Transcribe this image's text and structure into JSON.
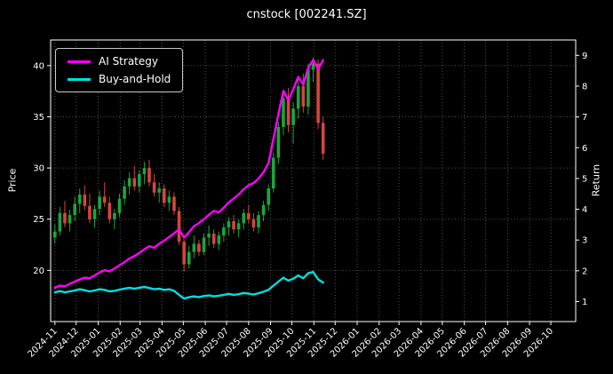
{
  "chart_data": {
    "type": "candlestick",
    "title": "cnstock [002241.SZ]",
    "left_ylabel": "Price",
    "right_ylabel": "Return",
    "legend_position": "upper left",
    "grid": true,
    "background": "#000000",
    "grid_color": "#555555",
    "text_color": "#ffffff",
    "x_range": [
      "2024-10-26",
      "2026-11-05"
    ],
    "x_tick_labels": [
      "2024-11",
      "2024-12",
      "2025-01",
      "2025-02",
      "2025-03",
      "2025-04",
      "2025-05",
      "2025-06",
      "2025-07",
      "2025-08",
      "2025-09",
      "2025-10",
      "2025-11",
      "2025-12",
      "2026-01",
      "2026-02",
      "2026-03",
      "2026-04",
      "2026-05",
      "2026-06",
      "2026-07",
      "2026-08",
      "2026-09",
      "2026-10"
    ],
    "price_axis": {
      "ticks": [
        20,
        25,
        30,
        35,
        40
      ],
      "range": [
        15.0,
        42.5
      ]
    },
    "return_axis": {
      "ticks": [
        1,
        2,
        3,
        4,
        5,
        6,
        7,
        8,
        9
      ],
      "range": [
        0.35,
        9.5
      ]
    },
    "candles": {
      "up_color": "#1aa53c",
      "down_color": "#d5463d",
      "ohlc": [
        [
          "2024-11-01",
          23.2,
          24.5,
          22.6,
          23.8
        ],
        [
          "2024-11-08",
          23.8,
          26.2,
          23.4,
          25.6
        ],
        [
          "2024-11-15",
          25.6,
          26.8,
          24.2,
          24.6
        ],
        [
          "2024-11-22",
          24.6,
          25.9,
          23.8,
          25.4
        ],
        [
          "2024-11-29",
          25.4,
          27.2,
          24.8,
          26.5
        ],
        [
          "2024-12-06",
          26.5,
          28.0,
          25.6,
          27.4
        ],
        [
          "2024-12-13",
          27.4,
          28.3,
          25.9,
          26.3
        ],
        [
          "2024-12-20",
          26.3,
          27.5,
          24.6,
          25.0
        ],
        [
          "2024-12-27",
          25.0,
          26.4,
          24.2,
          26.0
        ],
        [
          "2025-01-03",
          26.0,
          27.8,
          25.4,
          27.2
        ],
        [
          "2025-01-10",
          27.2,
          28.6,
          26.2,
          26.6
        ],
        [
          "2025-01-17",
          26.6,
          27.2,
          24.6,
          25.0
        ],
        [
          "2025-01-24",
          25.0,
          26.0,
          24.0,
          25.6
        ],
        [
          "2025-01-31",
          25.6,
          27.5,
          25.2,
          27.0
        ],
        [
          "2025-02-07",
          27.0,
          28.8,
          26.4,
          28.2
        ],
        [
          "2025-02-14",
          28.2,
          29.6,
          27.4,
          29.0
        ],
        [
          "2025-02-21",
          29.0,
          30.2,
          27.8,
          28.2
        ],
        [
          "2025-02-28",
          28.2,
          29.8,
          27.6,
          29.4
        ],
        [
          "2025-03-07",
          29.4,
          30.6,
          28.4,
          30.0
        ],
        [
          "2025-03-14",
          30.0,
          30.8,
          28.2,
          28.6
        ],
        [
          "2025-03-21",
          28.6,
          29.4,
          27.2,
          27.6
        ],
        [
          "2025-03-28",
          27.6,
          28.6,
          26.6,
          28.0
        ],
        [
          "2025-04-04",
          28.0,
          28.4,
          26.2,
          26.6
        ],
        [
          "2025-04-11",
          26.6,
          27.8,
          25.8,
          27.2
        ],
        [
          "2025-04-18",
          27.2,
          27.6,
          25.4,
          25.8
        ],
        [
          "2025-04-25",
          25.8,
          26.2,
          22.5,
          22.8
        ],
        [
          "2025-05-02",
          22.8,
          23.0,
          19.9,
          20.6
        ],
        [
          "2025-05-09",
          20.6,
          22.4,
          20.2,
          21.8
        ],
        [
          "2025-05-16",
          21.8,
          23.4,
          21.2,
          22.6
        ],
        [
          "2025-05-23",
          22.6,
          23.0,
          21.4,
          21.8
        ],
        [
          "2025-05-30",
          21.8,
          23.6,
          21.5,
          23.2
        ],
        [
          "2025-06-06",
          23.2,
          24.4,
          22.4,
          23.6
        ],
        [
          "2025-06-13",
          23.6,
          24.0,
          22.2,
          22.6
        ],
        [
          "2025-06-20",
          22.6,
          23.8,
          22.0,
          23.4
        ],
        [
          "2025-06-27",
          23.4,
          24.6,
          22.8,
          24.2
        ],
        [
          "2025-07-04",
          24.2,
          25.2,
          23.4,
          24.8
        ],
        [
          "2025-07-11",
          24.8,
          25.4,
          23.6,
          24.0
        ],
        [
          "2025-07-18",
          24.0,
          25.0,
          23.2,
          24.6
        ],
        [
          "2025-07-25",
          24.6,
          26.0,
          24.0,
          25.6
        ],
        [
          "2025-08-01",
          25.6,
          26.4,
          24.6,
          25.0
        ],
        [
          "2025-08-08",
          25.0,
          25.6,
          23.8,
          24.2
        ],
        [
          "2025-08-15",
          24.2,
          25.8,
          23.6,
          25.4
        ],
        [
          "2025-08-22",
          25.4,
          26.8,
          24.8,
          26.4
        ],
        [
          "2025-08-29",
          26.4,
          28.4,
          25.8,
          28.0
        ],
        [
          "2025-09-05",
          28.0,
          31.5,
          27.6,
          31.0
        ],
        [
          "2025-09-12",
          31.0,
          34.5,
          30.4,
          34.0
        ],
        [
          "2025-09-19",
          34.0,
          37.5,
          33.2,
          36.8
        ],
        [
          "2025-09-26",
          36.8,
          37.8,
          33.5,
          34.2
        ],
        [
          "2025-10-03",
          34.2,
          36.4,
          32.4,
          35.8
        ],
        [
          "2025-10-10",
          35.8,
          38.6,
          34.8,
          38.0
        ],
        [
          "2025-10-17",
          38.0,
          39.2,
          35.4,
          36.0
        ],
        [
          "2025-10-24",
          36.0,
          40.2,
          35.2,
          39.6
        ],
        [
          "2025-10-31",
          39.6,
          40.8,
          38.4,
          40.2
        ],
        [
          "2025-11-07",
          40.2,
          40.6,
          33.8,
          34.4
        ],
        [
          "2025-11-14",
          34.4,
          35.0,
          30.8,
          31.4
        ]
      ]
    },
    "series": [
      {
        "name": "AI Strategy",
        "key": "ai-strategy-line",
        "color": "#ff00ff",
        "axis": "return",
        "values": [
          1.45,
          1.52,
          1.5,
          1.58,
          1.65,
          1.72,
          1.78,
          1.76,
          1.85,
          1.95,
          2.02,
          1.98,
          2.08,
          2.18,
          2.28,
          2.4,
          2.48,
          2.58,
          2.7,
          2.8,
          2.75,
          2.88,
          2.98,
          3.1,
          3.22,
          3.35,
          3.08,
          3.25,
          3.45,
          3.55,
          3.68,
          3.82,
          3.95,
          3.9,
          4.05,
          4.22,
          4.35,
          4.48,
          4.65,
          4.78,
          4.85,
          5.0,
          5.2,
          5.5,
          6.3,
          7.1,
          7.85,
          7.55,
          7.9,
          8.3,
          8.05,
          8.6,
          8.85,
          8.55,
          8.85
        ]
      },
      {
        "name": "Buy-and-Hold",
        "key": "buy-and-hold-line",
        "color": "#00e0e0",
        "axis": "return",
        "values": [
          1.3,
          1.34,
          1.3,
          1.33,
          1.36,
          1.4,
          1.37,
          1.33,
          1.36,
          1.4,
          1.38,
          1.33,
          1.35,
          1.39,
          1.42,
          1.45,
          1.42,
          1.45,
          1.48,
          1.44,
          1.4,
          1.42,
          1.38,
          1.4,
          1.35,
          1.22,
          1.1,
          1.14,
          1.17,
          1.14,
          1.18,
          1.2,
          1.17,
          1.19,
          1.22,
          1.25,
          1.22,
          1.24,
          1.28,
          1.26,
          1.23,
          1.27,
          1.32,
          1.38,
          1.52,
          1.65,
          1.78,
          1.68,
          1.74,
          1.85,
          1.76,
          1.92,
          1.96,
          1.72,
          1.62
        ]
      }
    ]
  }
}
